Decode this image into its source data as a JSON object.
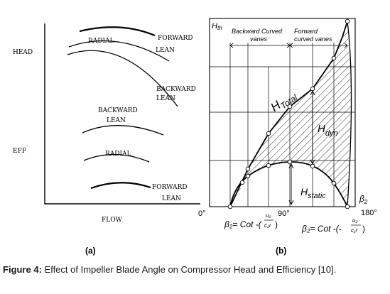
{
  "panel_a": {
    "label": "(a)",
    "y_label_head": "HEAD",
    "y_label_eff": "EFF",
    "x_label": "FLOW",
    "curves": {
      "head_forward": [
        "FORWARD",
        "LEAN"
      ],
      "head_radial": "RADIAL",
      "head_backward": [
        "BACKWARD",
        "LEAN"
      ],
      "eff_backward": [
        "BACKWARD",
        "LEAN"
      ],
      "eff_radial": "RADIAL",
      "eff_forward": [
        "FORWARD",
        "LEAN"
      ]
    }
  },
  "panel_b": {
    "label": "(b)",
    "y_axis": "H",
    "y_axis_sub": "th",
    "x_axis": "β",
    "x_axis_sub": "2",
    "tick_0": "0°",
    "tick_90": "90°",
    "tick_180": "180°",
    "region_backward": [
      "Backward Curved",
      "vanes"
    ],
    "region_forward": [
      "Forward",
      "curved vanes"
    ],
    "h_total": "H",
    "h_total_sub": "Total",
    "h_dyn": "H",
    "h_dyn_sub": "dyn",
    "h_static": "H",
    "h_static_sub": "static",
    "formula_left": "β₂= Cot -(",
    "formula_left_num": "u₂",
    "formula_left_den": "c₂r",
    "formula_right": "β₂= Cot -(-",
    "formula_right_num": "u₂",
    "formula_right_den": "c₁r"
  },
  "caption": {
    "prefix": "Figure 4:",
    "text": " Effect of Impeller Blade Angle on Compressor Head and Efficiency [10]."
  }
}
